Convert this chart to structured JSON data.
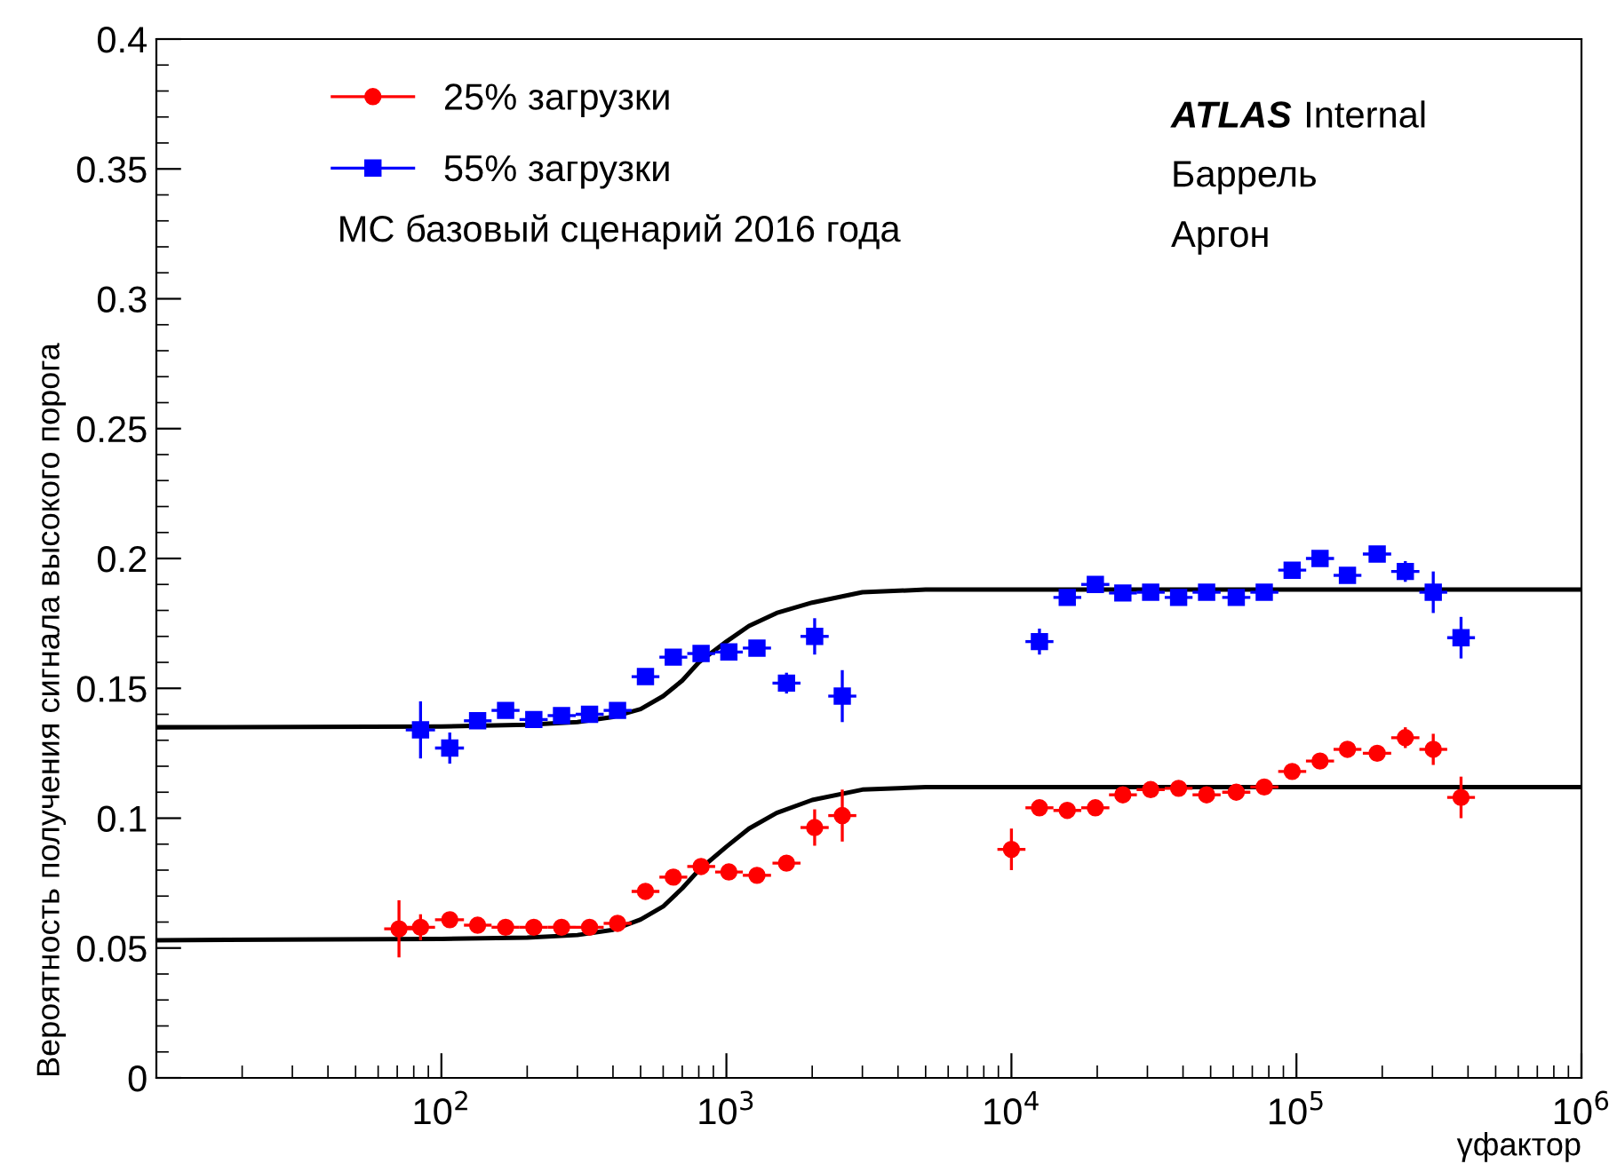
{
  "chart_data": {
    "type": "scatter",
    "ylabel": "Вероятность получения сигнала высокого порога",
    "xlabel": "γфактор",
    "log": "x",
    "xlim": [
      10,
      1000000
    ],
    "ylim": [
      0,
      0.4
    ],
    "xticks": [
      {
        "value": 100,
        "label": "10$^{2}$"
      },
      {
        "value": 1000,
        "label": "10$^{3}$"
      },
      {
        "value": 10000,
        "label": "10$^{4}$"
      },
      {
        "value": 100000,
        "label": "10$^{5}$"
      },
      {
        "value": 1000000,
        "label": "10$^{6}$"
      }
    ],
    "yticks": [
      0,
      0.05,
      0.1,
      0.15,
      0.2,
      0.25,
      0.3,
      0.35,
      0.4
    ],
    "grid": false,
    "legend": "top left",
    "annotations": [
      "МС базовый сценарий 2016 года",
      "ATLAS",
      "Internal",
      "Баррель",
      "Аргон"
    ],
    "series": [
      {
        "name": "25% загрузки",
        "color": "#ff0000",
        "marker": "circle",
        "x": [
          71,
          84.5,
          107,
          134,
          168,
          211,
          264,
          331,
          415,
          520,
          651,
          815,
          1020,
          1280,
          1625,
          2040,
          2550,
          10000,
          12540,
          15700,
          19700,
          24600,
          30800,
          38600,
          48400,
          61500,
          77100,
          96600,
          121000,
          151000,
          192000,
          241000,
          302000,
          378000
        ],
        "values": [
          0.0574,
          0.058,
          0.0609,
          0.0588,
          0.058,
          0.058,
          0.058,
          0.058,
          0.0595,
          0.0718,
          0.0773,
          0.0814,
          0.0793,
          0.078,
          0.0827,
          0.0964,
          0.101,
          0.088,
          0.104,
          0.103,
          0.104,
          0.109,
          0.111,
          0.1115,
          0.109,
          0.11,
          0.112,
          0.118,
          0.122,
          0.1265,
          0.125,
          0.131,
          0.1265,
          0.108
        ],
        "errors": [
          0.011,
          0.005,
          0.003,
          0.002,
          0.002,
          0.002,
          0.002,
          0.002,
          0.002,
          0.002,
          0.002,
          0.002,
          0.002,
          0.002,
          0.003,
          0.007,
          0.01,
          0.008,
          0.003,
          0.003,
          0.002,
          0.002,
          0.002,
          0.002,
          0.002,
          0.002,
          0.002,
          0.002,
          0.002,
          0.003,
          0.003,
          0.004,
          0.006,
          0.008
        ],
        "xerrors": [
          [
            63,
            80
          ],
          [
            75,
            95
          ],
          [
            95,
            120
          ],
          [
            120,
            150
          ],
          [
            150,
            188
          ],
          [
            188,
            236
          ],
          [
            236,
            296
          ],
          [
            296,
            371
          ],
          [
            371,
            465
          ],
          [
            465,
            582
          ],
          [
            582,
            729
          ],
          [
            729,
            913
          ],
          [
            913,
            1142
          ],
          [
            1142,
            1434
          ],
          [
            1451,
            1820
          ],
          [
            1820,
            2285
          ],
          [
            2277,
            2856
          ],
          [
            8930,
            11200
          ],
          [
            11200,
            14040
          ],
          [
            14040,
            17580
          ],
          [
            17580,
            22060
          ],
          [
            22000,
            27550
          ],
          [
            27500,
            34500
          ],
          [
            34500,
            43200
          ],
          [
            43200,
            54200
          ],
          [
            54900,
            68900
          ],
          [
            68900,
            86400
          ],
          [
            86300,
            108200
          ],
          [
            108000,
            135500
          ],
          [
            135000,
            169000
          ],
          [
            171000,
            215000
          ],
          [
            215000,
            270000
          ],
          [
            270000,
            338000
          ],
          [
            338000,
            423000
          ]
        ]
      },
      {
        "name": "55% загрузки",
        "color": "#0000ff",
        "marker": "square",
        "x": [
          84.5,
          107,
          134,
          168,
          211,
          264,
          331,
          415,
          520,
          651,
          815,
          1020,
          1280,
          1625,
          2040,
          2550,
          12540,
          15700,
          19700,
          24600,
          30800,
          38600,
          48400,
          61500,
          77100,
          96600,
          121000,
          151000,
          192000,
          241000,
          302000,
          378000
        ],
        "values": [
          0.134,
          0.127,
          0.1375,
          0.1415,
          0.138,
          0.1395,
          0.14,
          0.1415,
          0.1545,
          0.162,
          0.1634,
          0.164,
          0.1655,
          0.152,
          0.17,
          0.147,
          0.168,
          0.185,
          0.19,
          0.1867,
          0.187,
          0.185,
          0.187,
          0.185,
          0.187,
          0.1955,
          0.2,
          0.1935,
          0.2017,
          0.195,
          0.187,
          0.1695
        ],
        "errors": [
          0.011,
          0.006,
          0.003,
          0.002,
          0.002,
          0.002,
          0.002,
          0.002,
          0.002,
          0.002,
          0.002,
          0.002,
          0.002,
          0.004,
          0.007,
          0.01,
          0.005,
          0.003,
          0.002,
          0.002,
          0.002,
          0.002,
          0.002,
          0.002,
          0.002,
          0.002,
          0.002,
          0.002,
          0.003,
          0.004,
          0.008,
          0.008
        ],
        "xerrors": [
          [
            75,
            95
          ],
          [
            95,
            120
          ],
          [
            120,
            150
          ],
          [
            150,
            188
          ],
          [
            188,
            236
          ],
          [
            236,
            296
          ],
          [
            296,
            371
          ],
          [
            371,
            465
          ],
          [
            465,
            582
          ],
          [
            582,
            729
          ],
          [
            729,
            913
          ],
          [
            913,
            1142
          ],
          [
            1142,
            1434
          ],
          [
            1451,
            1820
          ],
          [
            1820,
            2285
          ],
          [
            2277,
            2856
          ],
          [
            11200,
            14040
          ],
          [
            14040,
            17580
          ],
          [
            17580,
            22060
          ],
          [
            22000,
            27550
          ],
          [
            27500,
            34500
          ],
          [
            34500,
            43200
          ],
          [
            43200,
            54200
          ],
          [
            54900,
            68900
          ],
          [
            68900,
            86400
          ],
          [
            86300,
            108200
          ],
          [
            108000,
            135500
          ],
          [
            135000,
            169000
          ],
          [
            171000,
            215000
          ],
          [
            215000,
            270000
          ],
          [
            270000,
            338000
          ],
          [
            338000,
            423000
          ]
        ]
      },
      {
        "type": "line",
        "color": "#000000",
        "marker": "none",
        "x": [
          10,
          100,
          200,
          300,
          400,
          500,
          600,
          700,
          800,
          1000,
          1200,
          1500,
          2000,
          3000,
          5000,
          1000000
        ],
        "values": [
          0.053,
          0.0535,
          0.054,
          0.055,
          0.057,
          0.061,
          0.066,
          0.073,
          0.08,
          0.089,
          0.096,
          0.102,
          0.107,
          0.111,
          0.112,
          0.112
        ]
      },
      {
        "type": "line",
        "color": "#000000",
        "marker": "none",
        "x": [
          10,
          100,
          200,
          300,
          400,
          500,
          600,
          700,
          800,
          1000,
          1200,
          1500,
          2000,
          3000,
          5000,
          1000000
        ],
        "values": [
          0.135,
          0.1353,
          0.136,
          0.137,
          0.139,
          0.142,
          0.147,
          0.153,
          0.16,
          0.168,
          0.174,
          0.179,
          0.183,
          0.187,
          0.188,
          0.188
        ]
      }
    ]
  }
}
